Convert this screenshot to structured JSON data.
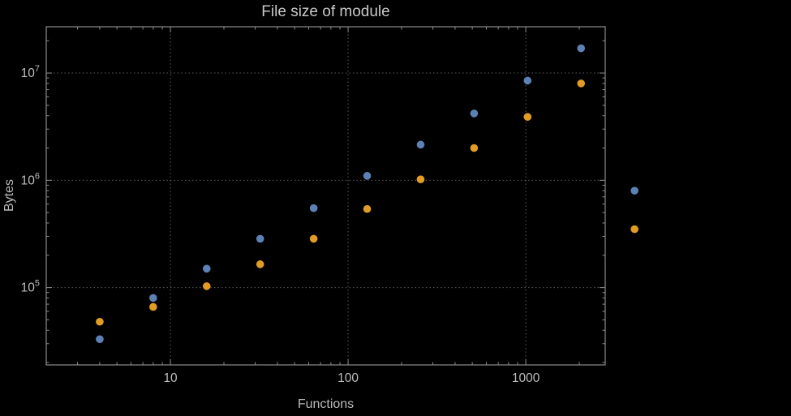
{
  "chart_data": {
    "type": "scatter",
    "title": "File size of module",
    "xlabel": "Functions",
    "ylabel": "Bytes",
    "x_scale": "log",
    "y_scale": "log",
    "x": [
      4,
      8,
      16,
      32,
      64,
      128,
      256,
      512,
      1024,
      2048,
      4096
    ],
    "series": [
      {
        "name": "series-blue",
        "color": "#5e81b5",
        "values": [
          33000,
          80000,
          150000,
          285000,
          550000,
          1100000,
          2150000,
          4200000,
          8500000,
          17000000,
          800000
        ]
      },
      {
        "name": "series-orange",
        "color": "#e19c24",
        "values": [
          48000,
          66000,
          103000,
          165000,
          285000,
          540000,
          1020000,
          2000000,
          3900000,
          8000000,
          350000
        ]
      }
    ],
    "x_ticks": [
      {
        "value": 10,
        "label": "10"
      },
      {
        "value": 100,
        "label": "100"
      },
      {
        "value": 1000,
        "label": "1000"
      }
    ],
    "y_ticks": [
      {
        "value": 100000,
        "base": "10",
        "exponent": "5"
      },
      {
        "value": 1000000,
        "base": "10",
        "exponent": "6"
      },
      {
        "value": 10000000,
        "base": "10",
        "exponent": "7"
      }
    ],
    "x_domain": [
      2,
      2800
    ],
    "y_domain": [
      19000,
      27000000
    ],
    "grid": true,
    "legend": false,
    "clipping": false,
    "colors": {
      "background": "#000000",
      "text": "#bdbdbd",
      "title": "#c9c9c9",
      "frame": "#8c8c8c",
      "grid": "#5c5c5c"
    }
  }
}
